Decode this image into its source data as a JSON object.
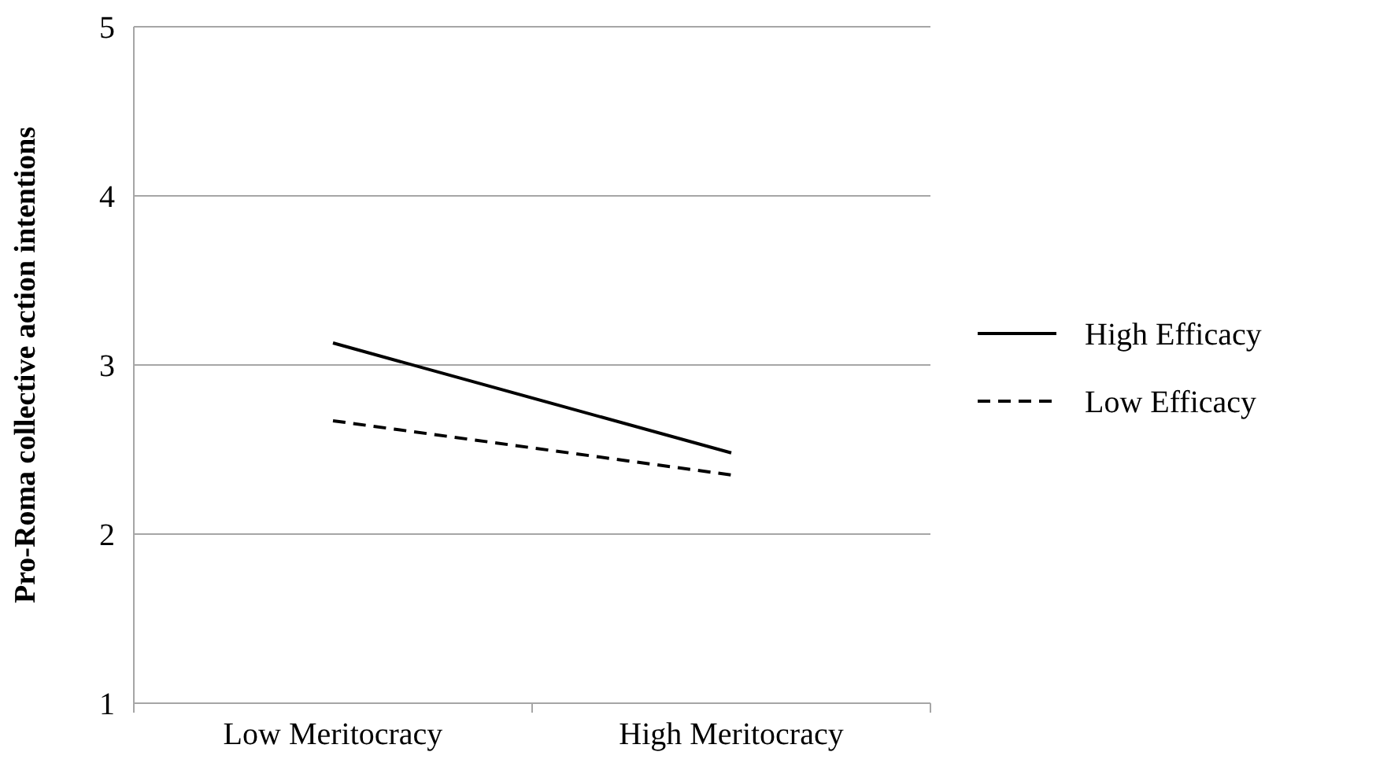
{
  "chart_data": {
    "type": "line",
    "ylabel": "Pro-Roma collective action intentions",
    "categories": [
      "Low Meritocracy",
      "High Meritocracy"
    ],
    "series": [
      {
        "name": "High Efficacy",
        "color": "#000000",
        "values": [
          3.13,
          2.48
        ],
        "line_style": "solid"
      },
      {
        "name": "Low Efficacy",
        "color": "#000000",
        "values": [
          2.67,
          2.35
        ],
        "line_style": "dashed"
      }
    ],
    "ylim": [
      1,
      5
    ],
    "yticks": [
      1,
      2,
      3,
      4,
      5
    ],
    "grid": "y",
    "legend": "right",
    "marker": "none"
  }
}
